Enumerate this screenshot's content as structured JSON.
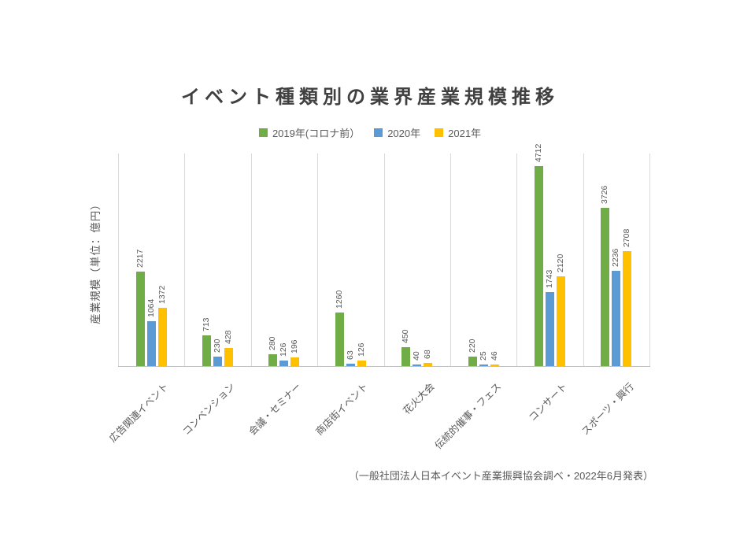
{
  "chart_data": {
    "type": "bar",
    "title": "イベント種類別の業界産業規模推移",
    "ylabel": "産業規模（単位：億円）",
    "xlabel": "",
    "categories": [
      "広告関連イベント",
      "コンベンション",
      "会議・セミナー",
      "商店街イベント",
      "花火大会",
      "伝統的催事・フェス",
      "コンサート",
      "スポーツ・興行"
    ],
    "series": [
      {
        "name": "2019年(コロナ前）",
        "color": "#70AD47",
        "values": [
          2217,
          713,
          280,
          1260,
          450,
          220,
          4712,
          3726
        ]
      },
      {
        "name": "2020年",
        "color": "#5B9BD5",
        "values": [
          1064,
          230,
          126,
          63,
          40,
          25,
          1743,
          2236
        ]
      },
      {
        "name": "2021年",
        "color": "#FFC000",
        "values": [
          1372,
          428,
          196,
          126,
          68,
          46,
          2120,
          2708
        ]
      }
    ],
    "ylim": [
      0,
      5000
    ],
    "grid": "vertical-category-separators",
    "legend_position": "top",
    "bar_value_labels": "rotated-90-above-bars",
    "source_note": "（一般社団法人日本イベント産業振興協会調べ・2022年6月発表）"
  },
  "colors": {
    "text": "#595959",
    "title": "#404040",
    "gridline": "#d9d9d9",
    "axis_line": "#bfbfbf",
    "background": "#ffffff"
  }
}
